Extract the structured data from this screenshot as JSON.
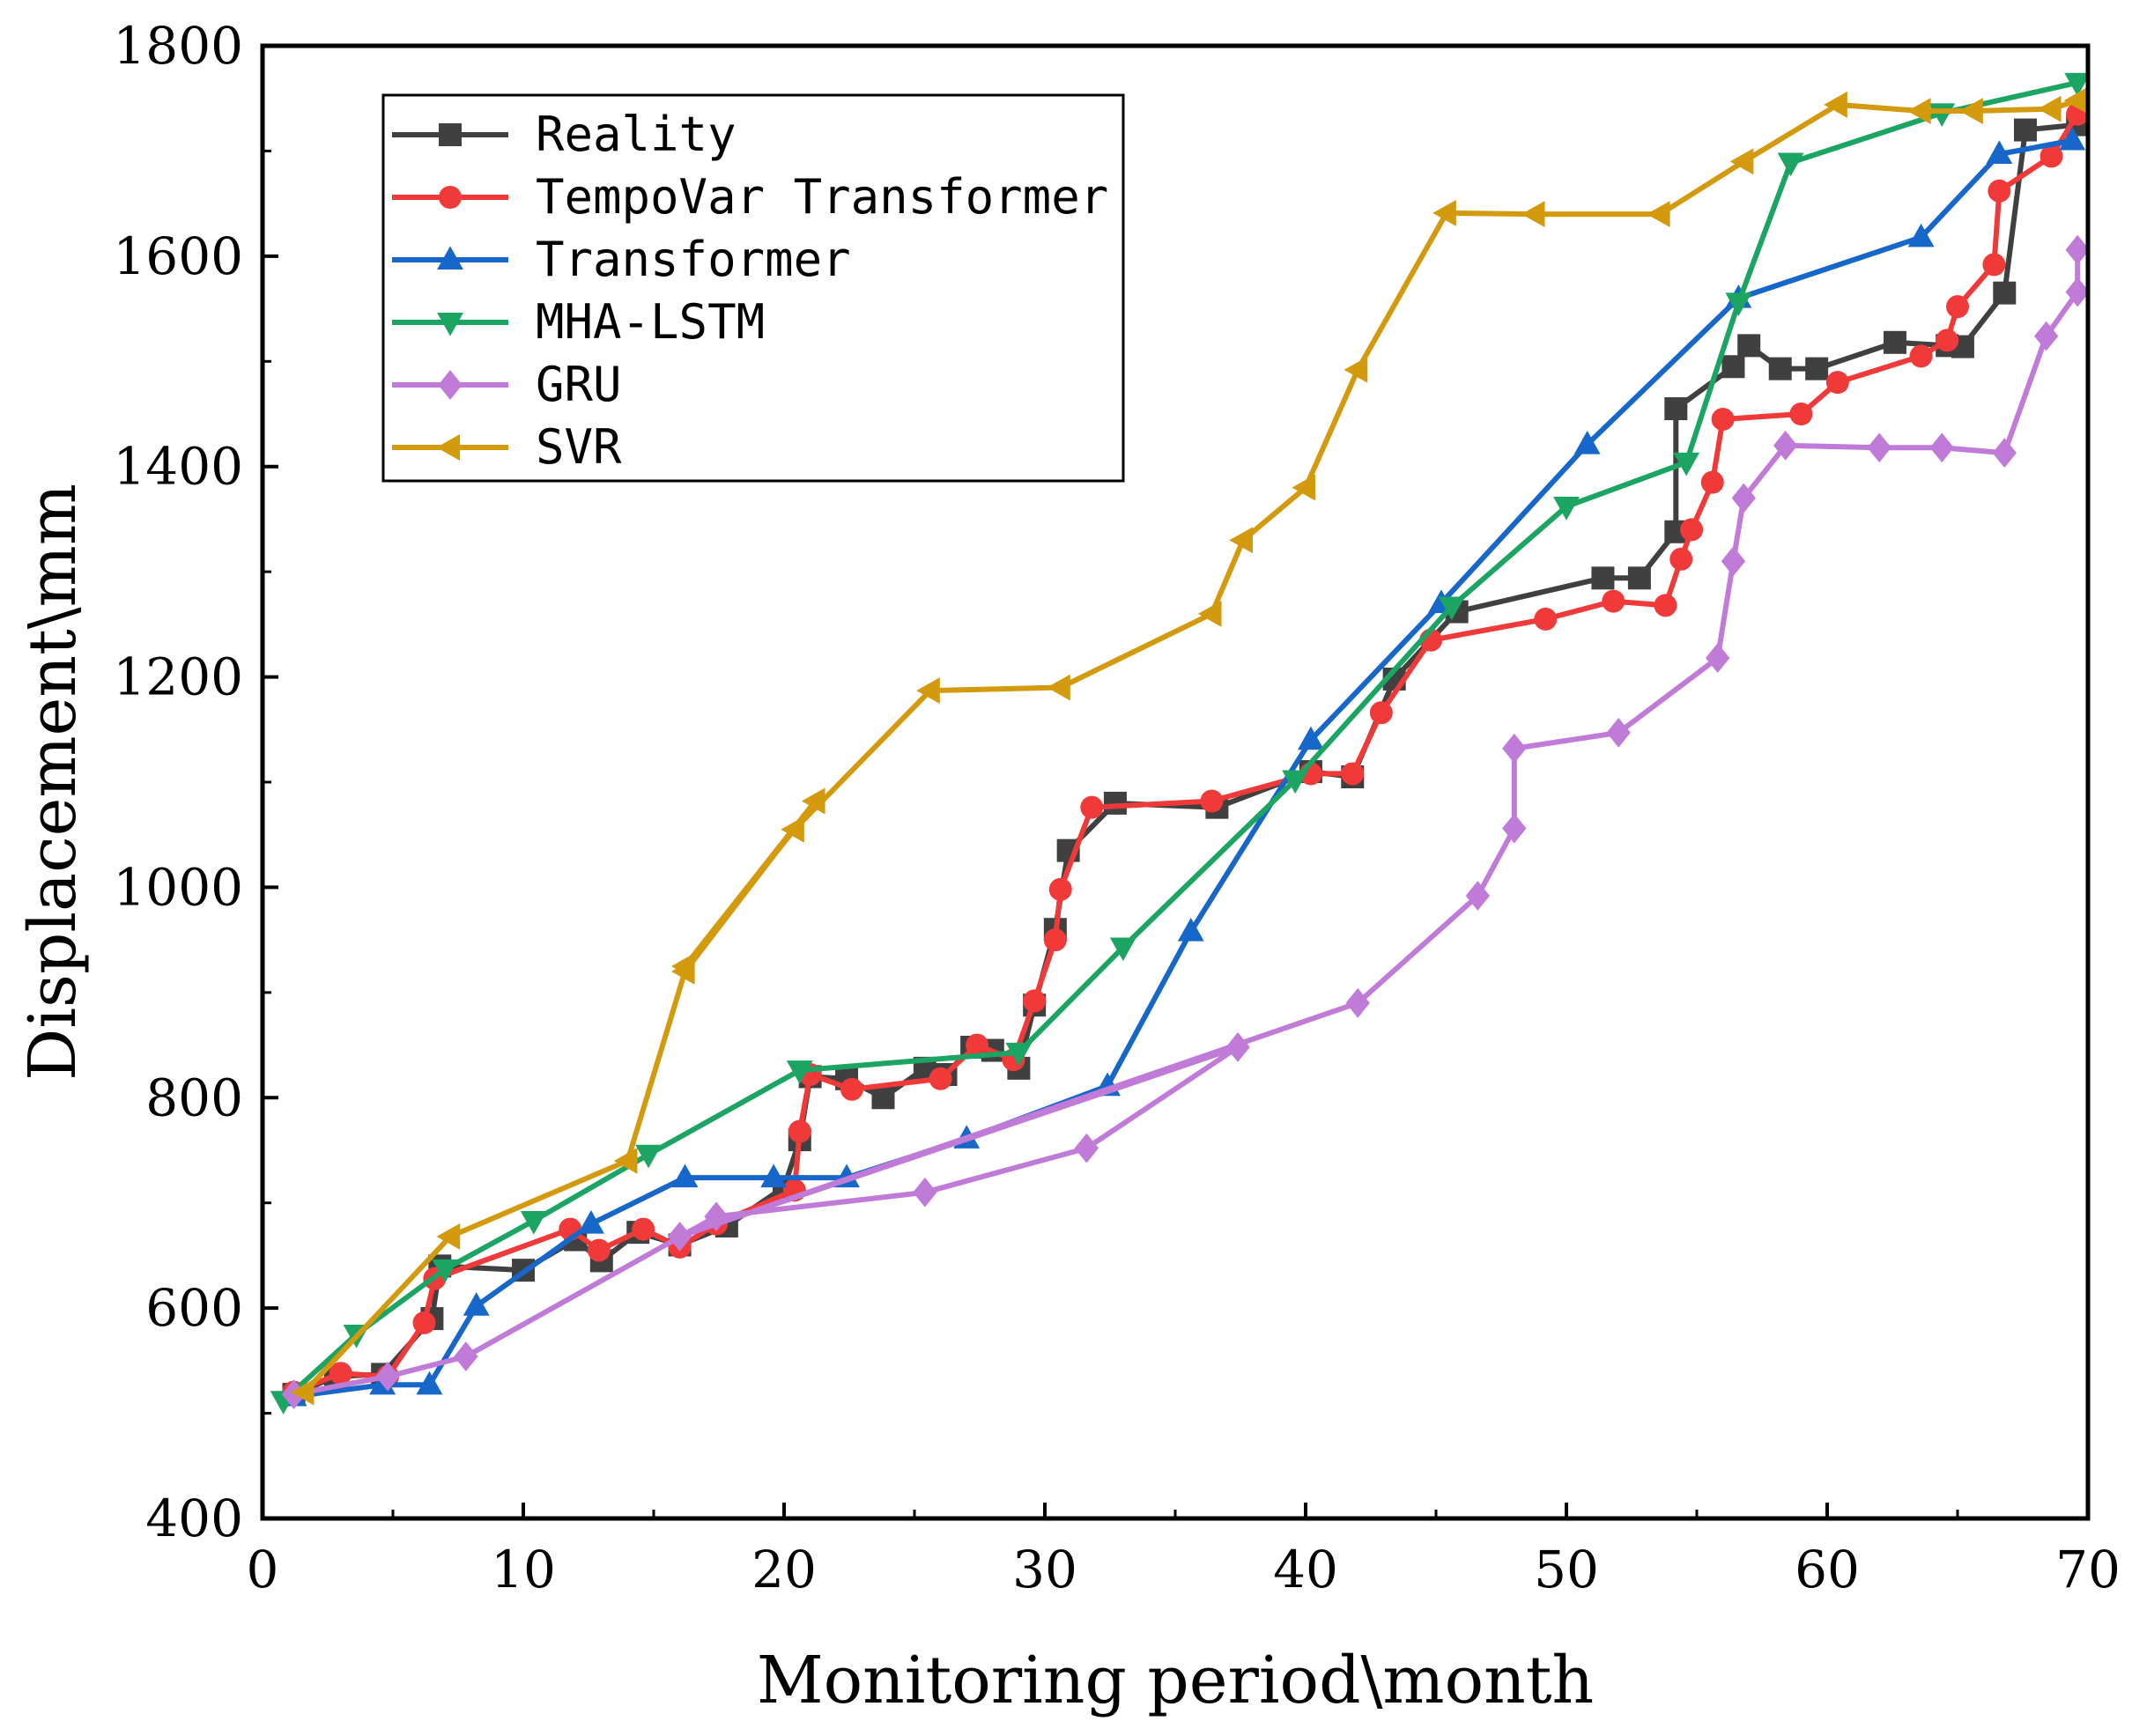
{
  "chart_data": {
    "type": "line",
    "title": "",
    "xlabel": "Monitoring period\\month",
    "ylabel": "Displacement\\mm",
    "xlim": [
      0,
      70
    ],
    "ylim": [
      400,
      1800
    ],
    "xticks": [
      0,
      10,
      20,
      30,
      40,
      50,
      60,
      70
    ],
    "yticks": [
      400,
      600,
      800,
      1000,
      1200,
      1400,
      1600,
      1800
    ],
    "grid": false,
    "legend_position": "top-left",
    "series": [
      {
        "name": "Reality",
        "color": "#404040",
        "marker": "square",
        "points": [
          [
            1.2,
            518
          ],
          [
            2.8,
            535
          ],
          [
            4.6,
            537
          ],
          [
            6.5,
            590
          ],
          [
            6.8,
            640
          ],
          [
            10,
            636
          ],
          [
            12,
            665
          ],
          [
            13,
            645
          ],
          [
            14.4,
            672
          ],
          [
            16,
            660
          ],
          [
            17.8,
            678
          ],
          [
            20,
            715
          ],
          [
            20.6,
            760
          ],
          [
            21,
            820
          ],
          [
            22.4,
            818
          ],
          [
            23.8,
            800
          ],
          [
            25.4,
            828
          ],
          [
            26.2,
            822
          ],
          [
            27.2,
            848
          ],
          [
            28,
            845
          ],
          [
            29,
            828
          ],
          [
            29.6,
            888
          ],
          [
            30.4,
            960
          ],
          [
            30.9,
            1035
          ],
          [
            32.7,
            1080
          ],
          [
            36.6,
            1076
          ],
          [
            40.2,
            1110
          ],
          [
            41.8,
            1105
          ],
          [
            43.4,
            1198
          ],
          [
            45.8,
            1262
          ],
          [
            51.4,
            1294
          ],
          [
            52.8,
            1294
          ],
          [
            54.2,
            1338
          ],
          [
            54.2,
            1455
          ],
          [
            56.4,
            1495
          ],
          [
            57,
            1515
          ],
          [
            58.2,
            1493
          ],
          [
            59.6,
            1493
          ],
          [
            62.6,
            1518
          ],
          [
            64.6,
            1515
          ],
          [
            65.2,
            1514
          ],
          [
            66.8,
            1565
          ],
          [
            67.6,
            1720
          ],
          [
            69.6,
            1725
          ]
        ]
      },
      {
        "name": "TempoVar Transformer",
        "color": "#f03a3a",
        "marker": "circle",
        "points": [
          [
            1.2,
            520
          ],
          [
            3,
            538
          ],
          [
            4.8,
            535
          ],
          [
            6.2,
            586
          ],
          [
            6.6,
            628
          ],
          [
            11.8,
            675
          ],
          [
            12.9,
            655
          ],
          [
            14.6,
            675
          ],
          [
            16,
            658
          ],
          [
            17.4,
            680
          ],
          [
            20.4,
            712
          ],
          [
            20.6,
            768
          ],
          [
            21.0,
            822
          ],
          [
            22.6,
            808
          ],
          [
            26,
            818
          ],
          [
            27.4,
            850
          ],
          [
            28.8,
            836
          ],
          [
            29.6,
            892
          ],
          [
            30.4,
            950
          ],
          [
            30.6,
            998
          ],
          [
            31.8,
            1076
          ],
          [
            36.4,
            1082
          ],
          [
            40.2,
            1108
          ],
          [
            41.8,
            1108
          ],
          [
            42.9,
            1166
          ],
          [
            44.8,
            1235
          ],
          [
            49.2,
            1255
          ],
          [
            51.8,
            1272
          ],
          [
            53.8,
            1268
          ],
          [
            54.4,
            1312
          ],
          [
            54.8,
            1340
          ],
          [
            55.6,
            1385
          ],
          [
            56,
            1445
          ],
          [
            59,
            1450
          ],
          [
            60.4,
            1480
          ],
          [
            63.6,
            1505
          ],
          [
            64.6,
            1520
          ],
          [
            65.0,
            1552
          ],
          [
            66.4,
            1592
          ],
          [
            66.6,
            1662
          ],
          [
            68.6,
            1695
          ],
          [
            69.6,
            1735
          ]
        ]
      },
      {
        "name": "Transformer",
        "color": "#1766c9",
        "marker": "triangle-up",
        "points": [
          [
            1.2,
            516
          ],
          [
            4.6,
            527
          ],
          [
            6.4,
            527
          ],
          [
            8.2,
            602
          ],
          [
            12.6,
            680
          ],
          [
            16.2,
            724
          ],
          [
            19.6,
            724
          ],
          [
            22.4,
            724
          ],
          [
            27.0,
            761
          ],
          [
            32.4,
            811
          ],
          [
            35.6,
            958
          ],
          [
            40.2,
            1140
          ],
          [
            45.2,
            1270
          ],
          [
            50.8,
            1421
          ],
          [
            56.6,
            1560
          ],
          [
            63.6,
            1618
          ],
          [
            66.6,
            1697
          ],
          [
            69.4,
            1710
          ]
        ]
      },
      {
        "name": "MHA-LSTM",
        "color": "#1ba462",
        "marker": "triangle-down",
        "points": [
          [
            0.8,
            512
          ],
          [
            3.6,
            575
          ],
          [
            7.0,
            637
          ],
          [
            10.4,
            683
          ],
          [
            14.8,
            746
          ],
          [
            20.6,
            826
          ],
          [
            29,
            843
          ],
          [
            33,
            943
          ],
          [
            39.6,
            1102
          ],
          [
            45.6,
            1267
          ],
          [
            50,
            1362
          ],
          [
            54.6,
            1404
          ],
          [
            56.6,
            1556
          ],
          [
            58.6,
            1689
          ],
          [
            64.4,
            1736
          ],
          [
            69.6,
            1765
          ]
        ]
      },
      {
        "name": "GRU",
        "color": "#c07ad8",
        "marker": "diamond",
        "points": [
          [
            1.2,
            518
          ],
          [
            4.8,
            535
          ],
          [
            7.8,
            554
          ],
          [
            17.4,
            687
          ],
          [
            25.4,
            710
          ],
          [
            31.6,
            752
          ],
          [
            37.4,
            848
          ],
          [
            16.0,
            668
          ],
          [
            42,
            890
          ],
          [
            46.6,
            992
          ],
          [
            48.0,
            1056
          ],
          [
            48.0,
            1132
          ],
          [
            52.0,
            1147
          ],
          [
            55.8,
            1218
          ],
          [
            56.4,
            1310
          ],
          [
            56.8,
            1370
          ],
          [
            58.4,
            1420
          ],
          [
            62.0,
            1418
          ],
          [
            64.4,
            1418
          ],
          [
            66.8,
            1413
          ],
          [
            68.4,
            1524
          ],
          [
            69.6,
            1566
          ],
          [
            69.6,
            1606
          ]
        ]
      },
      {
        "name": "SVR",
        "color": "#d49a0e",
        "marker": "triangle-left",
        "points": [
          [
            1.6,
            520
          ],
          [
            7.2,
            668
          ],
          [
            14,
            740
          ],
          [
            16.2,
            920
          ],
          [
            21.2,
            1082
          ],
          [
            16.2,
            925
          ],
          [
            20.4,
            1055
          ],
          [
            25.6,
            1187
          ],
          [
            30.6,
            1190
          ],
          [
            36.4,
            1260
          ],
          [
            37.6,
            1330
          ],
          [
            40.0,
            1380
          ],
          [
            42,
            1492
          ],
          [
            45.4,
            1641
          ],
          [
            48.8,
            1640
          ],
          [
            53.6,
            1640
          ],
          [
            56.8,
            1690
          ],
          [
            60.4,
            1744
          ],
          [
            63.6,
            1738
          ],
          [
            65.6,
            1738
          ],
          [
            68.6,
            1740
          ],
          [
            69.6,
            1748
          ]
        ]
      }
    ]
  }
}
